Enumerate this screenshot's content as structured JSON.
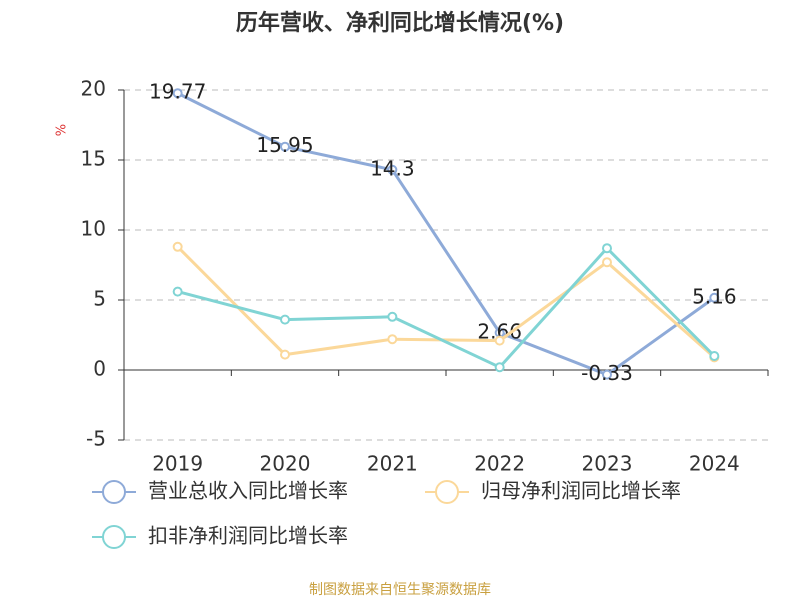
{
  "chart_data": {
    "type": "line",
    "title": "历年营收、净利同比增长情况(%)",
    "y_label": "%",
    "source": "制图数据来自恒生聚源数据库",
    "categories": [
      "2019",
      "2020",
      "2021",
      "2022",
      "2023",
      "2024"
    ],
    "series": [
      {
        "name": "营业总收入同比增长率",
        "color": "#8eaad8",
        "values": [
          19.77,
          15.95,
          14.3,
          2.66,
          -0.33,
          5.16
        ],
        "show_labels": true
      },
      {
        "name": "归母净利润同比增长率",
        "color": "#fbd89a",
        "values": [
          8.8,
          1.1,
          2.2,
          2.1,
          7.7,
          0.9
        ]
      },
      {
        "name": "扣非净利润同比增长率",
        "color": "#80d4d4",
        "values": [
          5.6,
          3.6,
          3.8,
          0.2,
          8.7,
          1.0
        ]
      }
    ],
    "ylim": [
      -5,
      20
    ],
    "yticks": [
      -5,
      0,
      5,
      10,
      15,
      20
    ],
    "grid": true
  }
}
